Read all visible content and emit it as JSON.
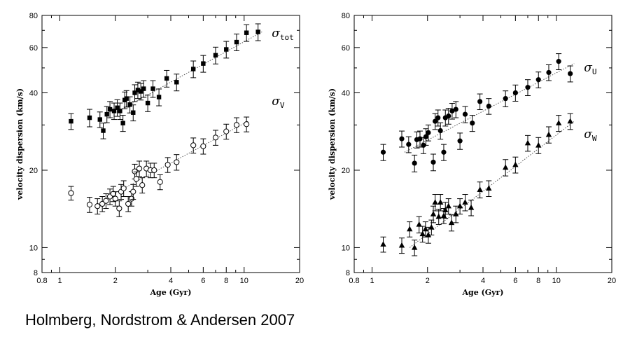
{
  "caption": "Holmberg, Nordstrom & Andersen 2007",
  "chart_data": [
    {
      "type": "scatter",
      "xlabel": "Age (Gyr)",
      "ylabel": "velocity dispersion (km/s)",
      "xscale": "log",
      "yscale": "log",
      "xlim": [
        0.8,
        20
      ],
      "ylim": [
        8,
        80
      ],
      "xticks": [
        0.8,
        1,
        2,
        4,
        6,
        8,
        10,
        20
      ],
      "yticks": [
        8,
        10,
        20,
        40,
        60,
        80
      ],
      "series": [
        {
          "name": "σ",
          "sub": "tot",
          "marker": "filled-square",
          "label_at": [
            12.5,
            68
          ],
          "points": [
            {
              "x": 1.15,
              "y": 31,
              "e": 2.2
            },
            {
              "x": 1.45,
              "y": 32,
              "e": 2.5
            },
            {
              "x": 1.65,
              "y": 31.5,
              "e": 2.2
            },
            {
              "x": 1.72,
              "y": 28.5,
              "e": 2.0
            },
            {
              "x": 1.8,
              "y": 33,
              "e": 2.4
            },
            {
              "x": 1.87,
              "y": 34.5,
              "e": 2.5
            },
            {
              "x": 1.97,
              "y": 34,
              "e": 2.5
            },
            {
              "x": 2.05,
              "y": 35,
              "e": 2.6
            },
            {
              "x": 2.12,
              "y": 34,
              "e": 2.5
            },
            {
              "x": 2.2,
              "y": 30.5,
              "e": 2.2
            },
            {
              "x": 2.25,
              "y": 37.5,
              "e": 2.8
            },
            {
              "x": 2.3,
              "y": 38,
              "e": 2.8
            },
            {
              "x": 2.4,
              "y": 36,
              "e": 2.6
            },
            {
              "x": 2.5,
              "y": 33.5,
              "e": 2.4
            },
            {
              "x": 2.55,
              "y": 40,
              "e": 3.0
            },
            {
              "x": 2.65,
              "y": 41,
              "e": 3.0
            },
            {
              "x": 2.75,
              "y": 40.5,
              "e": 3.0
            },
            {
              "x": 2.85,
              "y": 41.5,
              "e": 3.1
            },
            {
              "x": 3.0,
              "y": 36.5,
              "e": 2.7
            },
            {
              "x": 3.2,
              "y": 41.5,
              "e": 3.1
            },
            {
              "x": 3.45,
              "y": 38.5,
              "e": 2.9
            },
            {
              "x": 3.8,
              "y": 45.5,
              "e": 3.4
            },
            {
              "x": 4.3,
              "y": 44,
              "e": 3.3
            },
            {
              "x": 5.3,
              "y": 49.5,
              "e": 3.7
            },
            {
              "x": 6.0,
              "y": 52,
              "e": 3.9
            },
            {
              "x": 7.0,
              "y": 56,
              "e": 4.2
            },
            {
              "x": 8.0,
              "y": 59,
              "e": 4.4
            },
            {
              "x": 9.1,
              "y": 63,
              "e": 4.7
            },
            {
              "x": 10.3,
              "y": 68.5,
              "e": 5.1
            },
            {
              "x": 11.9,
              "y": 69,
              "e": 5.2
            }
          ],
          "fit": {
            "x": [
              2.0,
              12.5
            ],
            "y": [
              33.5,
              69
            ]
          }
        },
        {
          "name": "σ",
          "sub": "V",
          "marker": "open-circle",
          "label_at": [
            12.5,
            37
          ],
          "points": [
            {
              "x": 1.15,
              "y": 16.3,
              "e": 1.0
            },
            {
              "x": 1.45,
              "y": 14.7,
              "e": 1.0
            },
            {
              "x": 1.6,
              "y": 14.5,
              "e": 1.0
            },
            {
              "x": 1.7,
              "y": 14.8,
              "e": 1.0
            },
            {
              "x": 1.78,
              "y": 15.2,
              "e": 1.0
            },
            {
              "x": 1.87,
              "y": 15.8,
              "e": 1.1
            },
            {
              "x": 1.95,
              "y": 16.2,
              "e": 1.1
            },
            {
              "x": 2.0,
              "y": 15.5,
              "e": 1.0
            },
            {
              "x": 2.1,
              "y": 14.2,
              "e": 1.0
            },
            {
              "x": 2.15,
              "y": 16.5,
              "e": 1.1
            },
            {
              "x": 2.22,
              "y": 17.0,
              "e": 1.2
            },
            {
              "x": 2.35,
              "y": 14.8,
              "e": 1.0
            },
            {
              "x": 2.45,
              "y": 15.5,
              "e": 1.0
            },
            {
              "x": 2.5,
              "y": 16.5,
              "e": 1.1
            },
            {
              "x": 2.55,
              "y": 19.8,
              "e": 1.3
            },
            {
              "x": 2.6,
              "y": 18.5,
              "e": 1.2
            },
            {
              "x": 2.7,
              "y": 20.3,
              "e": 1.4
            },
            {
              "x": 2.8,
              "y": 17.5,
              "e": 1.2
            },
            {
              "x": 2.95,
              "y": 20.3,
              "e": 1.4
            },
            {
              "x": 3.1,
              "y": 20.0,
              "e": 1.3
            },
            {
              "x": 3.25,
              "y": 20.0,
              "e": 1.3
            },
            {
              "x": 3.5,
              "y": 18.0,
              "e": 1.2
            },
            {
              "x": 3.85,
              "y": 21.0,
              "e": 1.4
            },
            {
              "x": 4.3,
              "y": 21.5,
              "e": 1.5
            },
            {
              "x": 5.3,
              "y": 25.0,
              "e": 1.7
            },
            {
              "x": 6.0,
              "y": 24.8,
              "e": 1.7
            },
            {
              "x": 7.0,
              "y": 26.8,
              "e": 1.8
            },
            {
              "x": 8.0,
              "y": 28.3,
              "e": 1.9
            },
            {
              "x": 9.1,
              "y": 30.0,
              "e": 2.0
            },
            {
              "x": 10.3,
              "y": 30.2,
              "e": 2.0
            }
          ],
          "fit": {
            "x": [
              1.9,
              10.5
            ],
            "y": [
              16.0,
              31.0
            ]
          }
        }
      ]
    },
    {
      "type": "scatter",
      "xlabel": "Age (Gyr)",
      "ylabel": "velocity dispersion (km/s)",
      "xscale": "log",
      "yscale": "log",
      "xlim": [
        0.8,
        20
      ],
      "ylim": [
        8,
        80
      ],
      "xticks": [
        0.8,
        1,
        2,
        4,
        6,
        8,
        10,
        20
      ],
      "yticks": [
        8,
        10,
        20,
        40,
        60,
        80
      ],
      "series": [
        {
          "name": "σ",
          "sub": "U",
          "marker": "filled-circle",
          "label_at": [
            12.5,
            50
          ],
          "points": [
            {
              "x": 1.15,
              "y": 23.5,
              "e": 1.7
            },
            {
              "x": 1.45,
              "y": 26.5,
              "e": 1.9
            },
            {
              "x": 1.58,
              "y": 25.2,
              "e": 1.8
            },
            {
              "x": 1.7,
              "y": 21.3,
              "e": 1.6
            },
            {
              "x": 1.75,
              "y": 26.3,
              "e": 1.9
            },
            {
              "x": 1.82,
              "y": 26.5,
              "e": 1.9
            },
            {
              "x": 1.9,
              "y": 25.0,
              "e": 1.8
            },
            {
              "x": 1.96,
              "y": 27.0,
              "e": 2.0
            },
            {
              "x": 2.02,
              "y": 28.0,
              "e": 2.0
            },
            {
              "x": 2.15,
              "y": 21.5,
              "e": 1.6
            },
            {
              "x": 2.2,
              "y": 31.0,
              "e": 2.2
            },
            {
              "x": 2.28,
              "y": 32.0,
              "e": 2.3
            },
            {
              "x": 2.35,
              "y": 28.5,
              "e": 2.1
            },
            {
              "x": 2.45,
              "y": 23.5,
              "e": 1.7
            },
            {
              "x": 2.5,
              "y": 32.0,
              "e": 2.3
            },
            {
              "x": 2.6,
              "y": 32.5,
              "e": 2.3
            },
            {
              "x": 2.72,
              "y": 34.0,
              "e": 2.4
            },
            {
              "x": 2.85,
              "y": 34.5,
              "e": 2.5
            },
            {
              "x": 3.0,
              "y": 26.0,
              "e": 1.9
            },
            {
              "x": 3.2,
              "y": 33.0,
              "e": 2.4
            },
            {
              "x": 3.5,
              "y": 30.5,
              "e": 2.2
            },
            {
              "x": 3.85,
              "y": 37.0,
              "e": 2.6
            },
            {
              "x": 4.3,
              "y": 35.5,
              "e": 2.5
            },
            {
              "x": 5.3,
              "y": 38.0,
              "e": 2.7
            },
            {
              "x": 6.0,
              "y": 40.0,
              "e": 2.9
            },
            {
              "x": 7.0,
              "y": 42.0,
              "e": 3.0
            },
            {
              "x": 8.0,
              "y": 45.0,
              "e": 3.2
            },
            {
              "x": 9.1,
              "y": 48.0,
              "e": 3.4
            },
            {
              "x": 10.3,
              "y": 53.0,
              "e": 3.8
            },
            {
              "x": 11.9,
              "y": 47.5,
              "e": 3.4
            }
          ],
          "fit": {
            "x": [
              1.5,
              12.5
            ],
            "y": [
              23.5,
              52.0
            ]
          }
        },
        {
          "name": "σ",
          "sub": "W",
          "marker": "filled-triangle",
          "label_at": [
            12.5,
            27.5
          ],
          "points": [
            {
              "x": 1.15,
              "y": 10.3,
              "e": 0.7
            },
            {
              "x": 1.45,
              "y": 10.2,
              "e": 0.7
            },
            {
              "x": 1.6,
              "y": 11.8,
              "e": 0.8
            },
            {
              "x": 1.7,
              "y": 10.0,
              "e": 0.7
            },
            {
              "x": 1.8,
              "y": 12.3,
              "e": 0.9
            },
            {
              "x": 1.88,
              "y": 11.3,
              "e": 0.8
            },
            {
              "x": 1.95,
              "y": 11.8,
              "e": 0.8
            },
            {
              "x": 2.02,
              "y": 11.2,
              "e": 0.8
            },
            {
              "x": 2.1,
              "y": 12.0,
              "e": 0.8
            },
            {
              "x": 2.15,
              "y": 13.5,
              "e": 1.0
            },
            {
              "x": 2.2,
              "y": 15.0,
              "e": 1.1
            },
            {
              "x": 2.3,
              "y": 13.2,
              "e": 0.9
            },
            {
              "x": 2.35,
              "y": 15.0,
              "e": 1.1
            },
            {
              "x": 2.45,
              "y": 13.3,
              "e": 0.9
            },
            {
              "x": 2.5,
              "y": 14.0,
              "e": 1.0
            },
            {
              "x": 2.6,
              "y": 14.5,
              "e": 1.0
            },
            {
              "x": 2.7,
              "y": 12.5,
              "e": 0.9
            },
            {
              "x": 2.85,
              "y": 13.5,
              "e": 1.0
            },
            {
              "x": 3.0,
              "y": 14.5,
              "e": 1.0
            },
            {
              "x": 3.2,
              "y": 15.0,
              "e": 1.1
            },
            {
              "x": 3.45,
              "y": 14.3,
              "e": 1.0
            },
            {
              "x": 3.85,
              "y": 16.8,
              "e": 1.2
            },
            {
              "x": 4.3,
              "y": 17.0,
              "e": 1.2
            },
            {
              "x": 5.3,
              "y": 20.5,
              "e": 1.5
            },
            {
              "x": 6.0,
              "y": 21.0,
              "e": 1.5
            },
            {
              "x": 7.0,
              "y": 25.5,
              "e": 1.8
            },
            {
              "x": 8.0,
              "y": 25.0,
              "e": 1.8
            },
            {
              "x": 9.1,
              "y": 27.5,
              "e": 2.0
            },
            {
              "x": 10.3,
              "y": 30.5,
              "e": 2.2
            },
            {
              "x": 11.9,
              "y": 31.0,
              "e": 2.2
            }
          ],
          "fit": {
            "x": [
              1.6,
              12.5
            ],
            "y": [
              10.0,
              31.0
            ]
          }
        }
      ]
    }
  ]
}
